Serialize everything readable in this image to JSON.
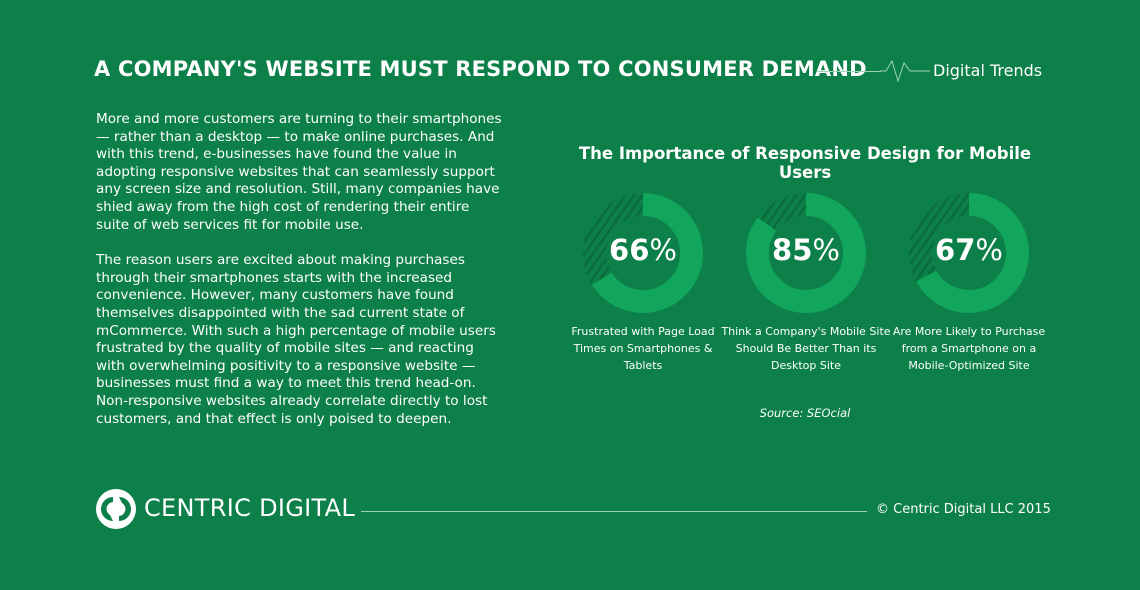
{
  "header": {
    "title": "A COMPANY'S WEBSITE MUST RESPOND TO CONSUMER DEMAND",
    "tag": "Digital Trends"
  },
  "body": {
    "paragraphs": [
      "More and more customers are turning to their smartphones — rather than a desktop — to make online purchases. And with this trend, e-businesses have found the value in adopting responsive websites that can seamlessly support any screen size and resolution. Still, many companies have shied away from the high cost of rendering their entire suite of web services fit for mobile use.",
      "The reason users are excited about making purchases through their smartphones starts with the increased convenience. However, many customers have found themselves disappointed with the sad current state of mCommerce. With such a high percentage of mobile users frustrated by the quality of mobile sites — and reacting with overwhelming positivity to a responsive website — businesses must find a way to meet this trend head-on. Non-responsive websites already correlate directly to lost customers, and that effect is only poised to deepen."
    ]
  },
  "chart_data": {
    "type": "pie",
    "variant": "donut",
    "title": "The Importance of Responsive Design for Mobile Users",
    "unit": "%",
    "colors": {
      "fill": "#12a55c",
      "remainder": "hatched",
      "background": "#0c8048"
    },
    "items": [
      {
        "value": 66,
        "label": "Frustrated with Page Load Times on Smartphones & Tablets"
      },
      {
        "value": 85,
        "label": "Think a Company's Mobile Site Should Be Better Than its Desktop Site"
      },
      {
        "value": 67,
        "label": "Are More Likely to Purchase from a Smartphone on a Mobile-Optimized Site"
      }
    ],
    "source": "Source: SEOcial"
  },
  "footer": {
    "brand": "CENTRIC DIGITAL",
    "copyright": "© Centric Digital LLC 2015"
  }
}
